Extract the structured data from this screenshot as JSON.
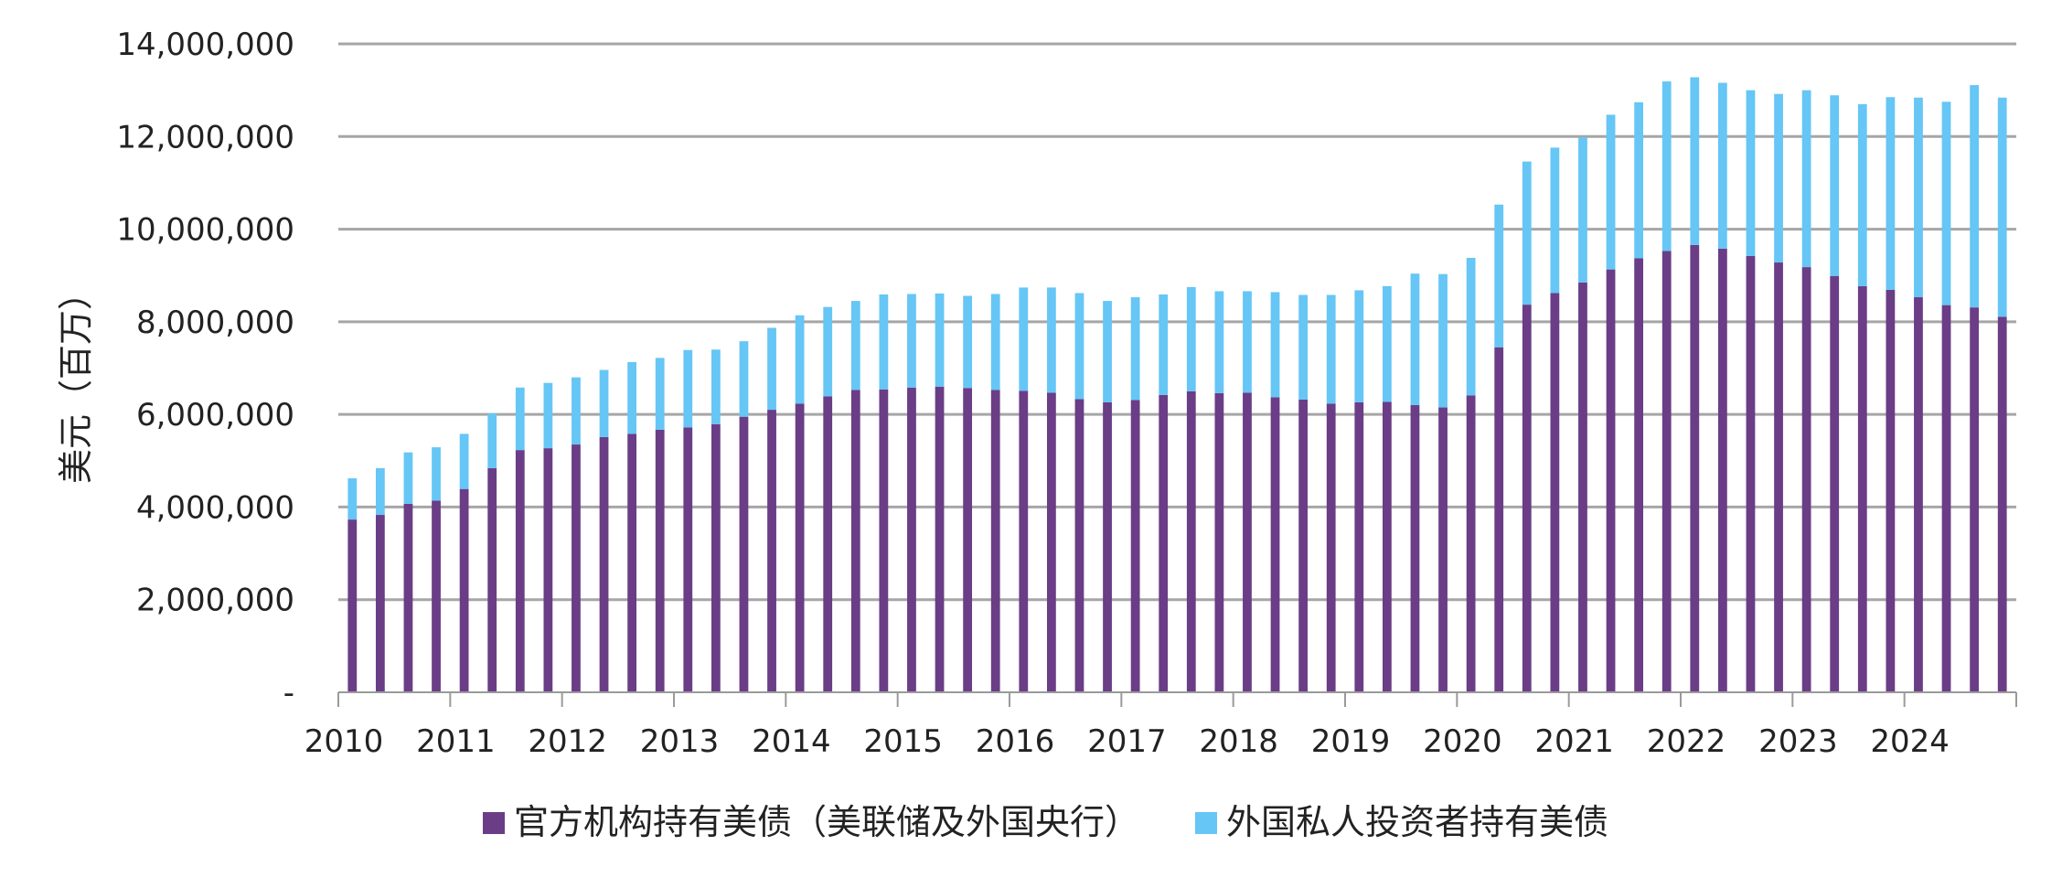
{
  "chart_data": {
    "type": "bar",
    "stacked": true,
    "ylabel": "美元（百万）",
    "ylim": [
      0,
      14000000
    ],
    "y_ticks": [
      0,
      2000000,
      4000000,
      6000000,
      8000000,
      10000000,
      12000000,
      14000000
    ],
    "y_tick_labels": [
      "-",
      "2,000,000",
      "4,000,000",
      "6,000,000",
      "8,000,000",
      "10,000,000",
      "12,000,000",
      "14,000,000"
    ],
    "x_tick_labels": [
      "2010",
      "2011",
      "2012",
      "2013",
      "2014",
      "2015",
      "2016",
      "2017",
      "2018",
      "2019",
      "2020",
      "2021",
      "2022",
      "2023",
      "2024"
    ],
    "periods_per_year": 4,
    "grid": true,
    "legend_position": "bottom",
    "series": [
      {
        "name": "官方机构持有美债（美联储及外国央行）",
        "color": "#6a3d86",
        "values": [
          3730000,
          3830000,
          4070000,
          4140000,
          4390000,
          4840000,
          5230000,
          5270000,
          5350000,
          5510000,
          5580000,
          5670000,
          5720000,
          5790000,
          5950000,
          6100000,
          6230000,
          6390000,
          6530000,
          6540000,
          6580000,
          6600000,
          6570000,
          6530000,
          6510000,
          6470000,
          6330000,
          6260000,
          6310000,
          6420000,
          6500000,
          6460000,
          6470000,
          6370000,
          6320000,
          6230000,
          6260000,
          6270000,
          6200000,
          6150000,
          6410000,
          7450000,
          8370000,
          8620000,
          8850000,
          9130000,
          9370000,
          9530000,
          9660000,
          9580000,
          9420000,
          9280000,
          9180000,
          8990000,
          8770000,
          8690000,
          8530000,
          8360000,
          8310000,
          8110000
        ]
      },
      {
        "name": "外国私人投资者持有美债",
        "color": "#66c6f5",
        "values": [
          890000,
          1010000,
          1110000,
          1150000,
          1190000,
          1180000,
          1350000,
          1410000,
          1450000,
          1450000,
          1550000,
          1550000,
          1670000,
          1610000,
          1630000,
          1770000,
          1910000,
          1930000,
          1920000,
          2050000,
          2020000,
          2010000,
          1990000,
          2070000,
          2230000,
          2270000,
          2290000,
          2190000,
          2220000,
          2170000,
          2250000,
          2200000,
          2190000,
          2270000,
          2260000,
          2350000,
          2420000,
          2500000,
          2840000,
          2880000,
          2970000,
          3080000,
          3090000,
          3140000,
          3130000,
          3340000,
          3370000,
          3660000,
          3620000,
          3580000,
          3580000,
          3640000,
          3820000,
          3900000,
          3930000,
          4160000,
          4310000,
          4390000,
          4800000,
          4730000
        ]
      }
    ]
  }
}
